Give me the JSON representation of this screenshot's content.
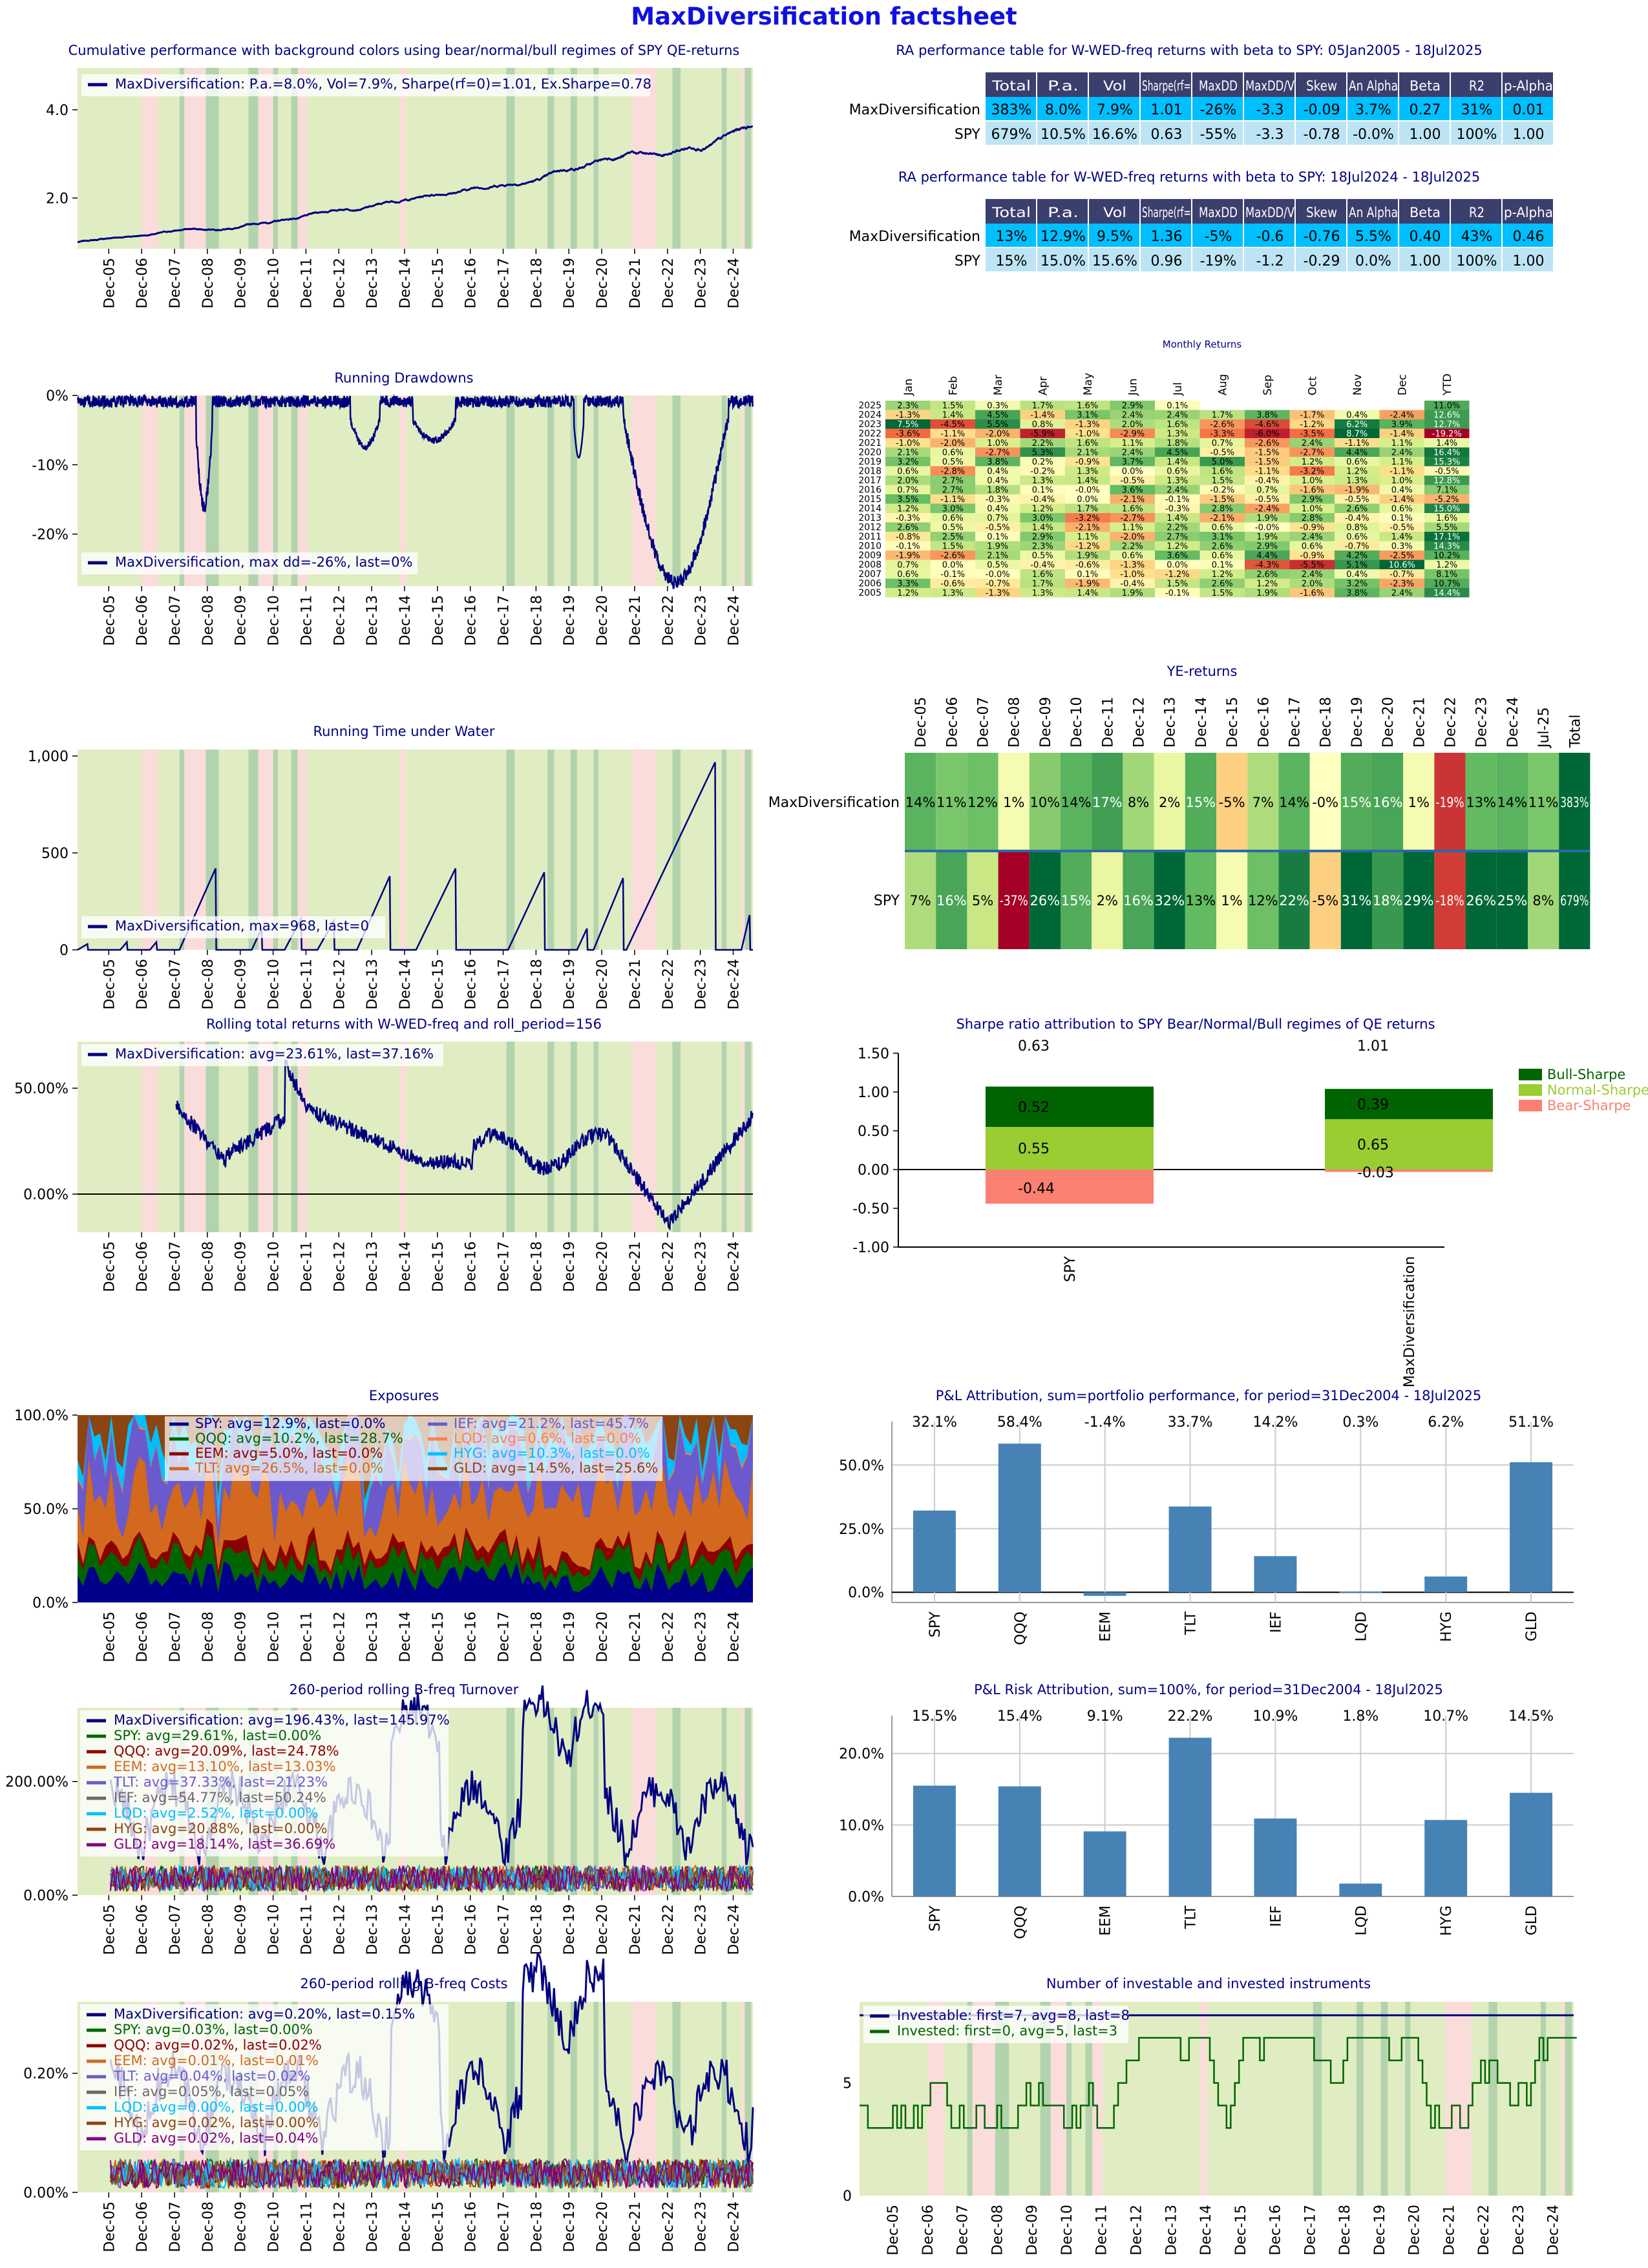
{
  "page_title": "MaxDiversification factsheet",
  "colors": {
    "bull": "#e0edc2",
    "normal": "#b3d3ad",
    "bear": "#fadddb",
    "navy": "#00007f",
    "header": "#3b3f6e",
    "cyan": "#00bfff",
    "lightblue": "#bde4f4",
    "steel": "#4682b4"
  },
  "regime_bands": {
    "note": "years as decimals, used only to paint regime background",
    "normal": [
      [
        2008.1,
        2008.25
      ],
      [
        2008.9,
        2009.3
      ],
      [
        2010.2,
        2010.5
      ],
      [
        2010.95,
        2011.1
      ],
      [
        2011.5,
        2011.7
      ],
      [
        2018.05,
        2018.3
      ],
      [
        2019.3,
        2019.5
      ],
      [
        2020.0,
        2020.2
      ],
      [
        2020.7,
        2020.85
      ],
      [
        2023.1,
        2023.35
      ],
      [
        2024.6,
        2024.75
      ],
      [
        2025.3,
        2025.5
      ]
    ],
    "bear": [
      [
        2006.95,
        2007.45
      ],
      [
        2008.25,
        2008.9
      ],
      [
        2010.5,
        2010.95
      ],
      [
        2011.7,
        2012.0
      ],
      [
        2014.8,
        2015.0
      ],
      [
        2021.85,
        2022.6
      ],
      [
        2025.2,
        2025.3
      ]
    ]
  },
  "x_ticks": [
    "Dec-05",
    "Dec-06",
    "Dec-07",
    "Dec-08",
    "Dec-09",
    "Dec-10",
    "Dec-11",
    "Dec-12",
    "Dec-13",
    "Dec-14",
    "Dec-15",
    "Dec-16",
    "Dec-17",
    "Dec-18",
    "Dec-19",
    "Dec-20",
    "Dec-21",
    "Dec-22",
    "Dec-23",
    "Dec-24"
  ],
  "panels": {
    "cum": {
      "title": "Cumulative performance with background colors using bear/normal/bull regimes of SPY QE-returns",
      "legend": "MaxDiversification: P.a.=8.0%, Vol=7.9%, Sharpe(rf=0)=1.01, Ex.Sharpe=0.78",
      "y_ticks": [
        "2.0",
        "4.0"
      ]
    },
    "dd": {
      "title": "Running Drawdowns",
      "legend": "MaxDiversification, max dd=-26%, last=0%",
      "y_ticks": [
        "0%",
        "-10%",
        "-20%"
      ]
    },
    "tuw": {
      "title": "Running Time under Water",
      "legend": "MaxDiversification, max=968, last=0",
      "y_ticks": [
        "0",
        "500",
        "1,000"
      ]
    },
    "roll": {
      "title": "Rolling total returns with W-WED-freq and roll_period=156",
      "legend": "MaxDiversification: avg=23.61%, last=37.16%",
      "y_ticks": [
        "0.00%",
        "50.00%"
      ]
    },
    "exp": {
      "title": "Exposures",
      "legend": [
        {
          "label": "SPY: avg=12.9%, last=0.0%",
          "color": "#00008b"
        },
        {
          "label": "IEF: avg=21.2%, last=45.7%",
          "color": "#6a5acd"
        },
        {
          "label": "QQQ: avg=10.2%, last=28.7%",
          "color": "#006400"
        },
        {
          "label": "LQD: avg=0.6%, last=0.0%",
          "color": "#ff7f50"
        },
        {
          "label": "EEM: avg=5.0%, last=0.0%",
          "color": "#8b0000"
        },
        {
          "label": "HYG: avg=10.3%, last=0.0%",
          "color": "#00bfff"
        },
        {
          "label": "TLT: avg=26.5%, last=0.0%",
          "color": "#d2691e"
        },
        {
          "label": "GLD: avg=14.5%, last=25.6%",
          "color": "#8b4513"
        }
      ],
      "y_ticks": [
        "0.0%",
        "50.0%",
        "100.0%"
      ]
    },
    "turn": {
      "title": "260-period rolling B-freq Turnover",
      "legend": [
        {
          "label": "MaxDiversification: avg=196.43%, last=145.97%",
          "color": "#00007f"
        },
        {
          "label": "SPY: avg=29.61%, last=0.00%",
          "color": "#006400"
        },
        {
          "label": "QQQ: avg=20.09%, last=24.78%",
          "color": "#8b0000"
        },
        {
          "label": "EEM: avg=13.10%, last=13.03%",
          "color": "#d2691e"
        },
        {
          "label": "TLT: avg=37.33%, last=21.23%",
          "color": "#6a5acd"
        },
        {
          "label": "IEF: avg=54.77%, last=50.24%",
          "color": "#696969"
        },
        {
          "label": "LQD: avg=2.52%, last=0.00%",
          "color": "#00bfff"
        },
        {
          "label": "HYG: avg=20.88%, last=0.00%",
          "color": "#8b4513"
        },
        {
          "label": "GLD: avg=18.14%, last=36.69%",
          "color": "#800080"
        }
      ],
      "y_ticks": [
        "0.00%",
        "200.00%"
      ]
    },
    "cost": {
      "title": "260-period rolling B-freq Costs",
      "legend": [
        {
          "label": "MaxDiversification: avg=0.20%, last=0.15%",
          "color": "#00007f"
        },
        {
          "label": "SPY: avg=0.03%, last=0.00%",
          "color": "#006400"
        },
        {
          "label": "QQQ: avg=0.02%, last=0.02%",
          "color": "#8b0000"
        },
        {
          "label": "EEM: avg=0.01%, last=0.01%",
          "color": "#d2691e"
        },
        {
          "label": "TLT: avg=0.04%, last=0.02%",
          "color": "#6a5acd"
        },
        {
          "label": "IEF: avg=0.05%, last=0.05%",
          "color": "#696969"
        },
        {
          "label": "LQD: avg=0.00%, last=0.00%",
          "color": "#00bfff"
        },
        {
          "label": "HYG: avg=0.02%, last=0.00%",
          "color": "#8b4513"
        },
        {
          "label": "GLD: avg=0.02%, last=0.04%",
          "color": "#800080"
        }
      ],
      "y_ticks": [
        "0.00%",
        "0.20%"
      ]
    },
    "ninst": {
      "title": "Number of investable and invested instruments",
      "legend": [
        {
          "label": "Investable: first=7, avg=8, last=8",
          "color": "#00007f"
        },
        {
          "label": "Invested: first=0, avg=5, last=3",
          "color": "#006400"
        }
      ],
      "y_ticks": [
        "0",
        "5"
      ]
    }
  },
  "ra_tables": [
    {
      "title": "RA performance table  for W-WED-freq returns with beta to SPY: 05Jan2005 - 18Jul2025",
      "headers": [
        "Total",
        "P.a.",
        "Vol",
        "Sharpe(rf=",
        "MaxDD",
        "MaxDD/V",
        "Skew",
        "An Alpha",
        "Beta",
        "R2",
        "p-Alpha"
      ],
      "rows": [
        {
          "name": "MaxDiversification",
          "cells": [
            "383%",
            "8.0%",
            "7.9%",
            "1.01",
            "-26%",
            "-3.3",
            "-0.09",
            "3.7%",
            "0.27",
            "31%",
            "0.01"
          ]
        },
        {
          "name": "SPY",
          "cells": [
            "679%",
            "10.5%",
            "16.6%",
            "0.63",
            "-55%",
            "-3.3",
            "-0.78",
            "-0.0%",
            "1.00",
            "100%",
            "1.00"
          ]
        }
      ]
    },
    {
      "title": "RA performance table  for W-WED-freq returns with beta to SPY: 18Jul2024 - 18Jul2025",
      "headers": [
        "Total",
        "P.a.",
        "Vol",
        "Sharpe(rf=",
        "MaxDD",
        "MaxDD/V",
        "Skew",
        "An Alpha",
        "Beta",
        "R2",
        "p-Alpha"
      ],
      "rows": [
        {
          "name": "MaxDiversification",
          "cells": [
            "13%",
            "12.9%",
            "9.5%",
            "1.36",
            "-5%",
            "-0.6",
            "-0.76",
            "5.5%",
            "0.40",
            "43%",
            "0.46"
          ]
        },
        {
          "name": "SPY",
          "cells": [
            "15%",
            "15.0%",
            "15.6%",
            "0.96",
            "-19%",
            "-1.2",
            "-0.29",
            "0.0%",
            "1.00",
            "100%",
            "1.00"
          ]
        }
      ]
    }
  ],
  "monthly": {
    "title": "Monthly Returns",
    "columns": [
      "Jan",
      "Feb",
      "Mar",
      "Apr",
      "May",
      "Jun",
      "Jul",
      "Aug",
      "Sep",
      "Oct",
      "Nov",
      "Dec",
      "YTD"
    ],
    "rows": [
      {
        "year": "2025",
        "cells": [
          "2.3%",
          "1.5%",
          "0.3%",
          "1.7%",
          "1.6%",
          "2.9%",
          "0.1%",
          "",
          "",
          "",
          "",
          "",
          "11.0%"
        ]
      },
      {
        "year": "2024",
        "cells": [
          "-1.3%",
          "1.4%",
          "4.5%",
          "-1.4%",
          "3.1%",
          "2.4%",
          "2.4%",
          "1.7%",
          "3.8%",
          "-1.7%",
          "0.4%",
          "-2.4%",
          "12.6%"
        ]
      },
      {
        "year": "2023",
        "cells": [
          "7.5%",
          "-4.5%",
          "5.5%",
          "0.8%",
          "-1.3%",
          "2.0%",
          "1.6%",
          "-2.6%",
          "-4.6%",
          "-1.2%",
          "6.2%",
          "3.9%",
          "12.7%"
        ]
      },
      {
        "year": "2022",
        "cells": [
          "-3.6%",
          "-1.1%",
          "-2.0%",
          "-5.9%",
          "-1.0%",
          "-2.9%",
          "1.3%",
          "-3.3%",
          "-6.0%",
          "-3.5%",
          "8.7%",
          "-1.4%",
          "-19.2%"
        ]
      },
      {
        "year": "2021",
        "cells": [
          "-1.0%",
          "-2.0%",
          "1.0%",
          "2.2%",
          "1.6%",
          "1.1%",
          "1.8%",
          "0.7%",
          "-2.6%",
          "2.4%",
          "-1.1%",
          "1.1%",
          "1.4%"
        ]
      },
      {
        "year": "2020",
        "cells": [
          "2.1%",
          "0.6%",
          "-2.7%",
          "5.3%",
          "2.1%",
          "2.4%",
          "4.5%",
          "-0.5%",
          "-1.5%",
          "-2.7%",
          "4.4%",
          "2.4%",
          "16.4%"
        ]
      },
      {
        "year": "2019",
        "cells": [
          "3.2%",
          "0.5%",
          "3.8%",
          "0.2%",
          "-0.9%",
          "3.7%",
          "1.4%",
          "5.0%",
          "-1.5%",
          "1.2%",
          "0.6%",
          "1.1%",
          "15.3%"
        ]
      },
      {
        "year": "2018",
        "cells": [
          "0.6%",
          "-2.8%",
          "0.4%",
          "-0.2%",
          "1.3%",
          "0.0%",
          "0.6%",
          "1.6%",
          "-1.1%",
          "-3.2%",
          "1.2%",
          "-1.1%",
          "-0.5%"
        ]
      },
      {
        "year": "2017",
        "cells": [
          "2.0%",
          "2.7%",
          "0.4%",
          "1.3%",
          "1.4%",
          "-0.5%",
          "1.3%",
          "1.5%",
          "-0.4%",
          "1.0%",
          "1.3%",
          "1.0%",
          "12.8%"
        ]
      },
      {
        "year": "2016",
        "cells": [
          "0.7%",
          "2.7%",
          "1.8%",
          "0.1%",
          "-0.0%",
          "3.6%",
          "2.4%",
          "-0.2%",
          "0.7%",
          "-1.6%",
          "-1.9%",
          "0.4%",
          "7.1%"
        ]
      },
      {
        "year": "2015",
        "cells": [
          "3.5%",
          "-1.1%",
          "-0.3%",
          "-0.4%",
          "0.0%",
          "-2.1%",
          "-0.1%",
          "-1.5%",
          "-0.5%",
          "2.9%",
          "-0.5%",
          "-1.4%",
          "-5.2%"
        ]
      },
      {
        "year": "2014",
        "cells": [
          "1.2%",
          "3.0%",
          "0.4%",
          "1.2%",
          "1.7%",
          "1.6%",
          "-0.3%",
          "2.8%",
          "-2.4%",
          "1.0%",
          "2.6%",
          "0.6%",
          "15.0%"
        ]
      },
      {
        "year": "2013",
        "cells": [
          "-0.3%",
          "0.6%",
          "0.7%",
          "3.0%",
          "-3.2%",
          "-2.7%",
          "1.4%",
          "-2.1%",
          "1.9%",
          "2.8%",
          "-0.4%",
          "0.1%",
          "1.6%"
        ]
      },
      {
        "year": "2012",
        "cells": [
          "2.6%",
          "0.5%",
          "-0.5%",
          "1.4%",
          "-2.1%",
          "1.1%",
          "2.2%",
          "0.6%",
          "-0.0%",
          "-0.9%",
          "0.8%",
          "-0.5%",
          "5.5%"
        ]
      },
      {
        "year": "2011",
        "cells": [
          "-0.8%",
          "2.5%",
          "0.1%",
          "2.9%",
          "1.1%",
          "-2.0%",
          "2.7%",
          "3.1%",
          "1.9%",
          "2.4%",
          "0.6%",
          "1.4%",
          "17.1%"
        ]
      },
      {
        "year": "2010",
        "cells": [
          "-0.1%",
          "1.5%",
          "1.9%",
          "2.3%",
          "-1.2%",
          "2.2%",
          "1.2%",
          "2.6%",
          "2.9%",
          "0.6%",
          "-0.7%",
          "0.3%",
          "14.3%"
        ]
      },
      {
        "year": "2009",
        "cells": [
          "-1.9%",
          "-2.6%",
          "2.1%",
          "0.5%",
          "1.9%",
          "0.6%",
          "3.6%",
          "0.6%",
          "4.4%",
          "-0.9%",
          "4.2%",
          "-2.5%",
          "10.2%"
        ]
      },
      {
        "year": "2008",
        "cells": [
          "0.7%",
          "0.0%",
          "0.5%",
          "-0.4%",
          "-0.6%",
          "-1.3%",
          "0.0%",
          "0.1%",
          "-4.3%",
          "-5.5%",
          "5.1%",
          "10.6%",
          "1.2%"
        ]
      },
      {
        "year": "2007",
        "cells": [
          "0.6%",
          "-0.1%",
          "-0.0%",
          "1.6%",
          "0.1%",
          "-1.0%",
          "-1.2%",
          "1.2%",
          "2.6%",
          "2.4%",
          "0.4%",
          "-0.7%",
          "8.1%"
        ]
      },
      {
        "year": "2006",
        "cells": [
          "3.3%",
          "-0.6%",
          "-0.7%",
          "1.7%",
          "-1.9%",
          "-0.4%",
          "1.5%",
          "2.6%",
          "1.2%",
          "2.0%",
          "3.2%",
          "-2.3%",
          "10.7%"
        ]
      },
      {
        "year": "2005",
        "cells": [
          "1.2%",
          "1.3%",
          "-1.3%",
          "1.3%",
          "1.4%",
          "1.9%",
          "-0.1%",
          "1.5%",
          "1.9%",
          "-1.6%",
          "3.8%",
          "2.4%",
          "14.4%"
        ]
      }
    ]
  },
  "ye": {
    "title": "YE-returns",
    "columns": [
      "Dec-05",
      "Dec-06",
      "Dec-07",
      "Dec-08",
      "Dec-09",
      "Dec-10",
      "Dec-11",
      "Dec-12",
      "Dec-13",
      "Dec-14",
      "Dec-15",
      "Dec-16",
      "Dec-17",
      "Dec-18",
      "Dec-19",
      "Dec-20",
      "Dec-21",
      "Dec-22",
      "Dec-23",
      "Dec-24",
      "Jul-25",
      "Total"
    ],
    "rows": [
      {
        "name": "MaxDiversification",
        "cells": [
          "14%",
          "11%",
          "12%",
          "1%",
          "10%",
          "14%",
          "17%",
          "8%",
          "2%",
          "15%",
          "-5%",
          "7%",
          "14%",
          "-0%",
          "15%",
          "16%",
          "1%",
          "-19%",
          "13%",
          "14%",
          "11%",
          "383%"
        ]
      },
      {
        "name": "SPY",
        "cells": [
          "7%",
          "16%",
          "5%",
          "-37%",
          "26%",
          "15%",
          "2%",
          "16%",
          "32%",
          "13%",
          "1%",
          "12%",
          "22%",
          "-5%",
          "31%",
          "18%",
          "29%",
          "-18%",
          "26%",
          "25%",
          "8%",
          "679%"
        ]
      }
    ]
  },
  "sharpe": {
    "title": "Sharpe ratio attribution to SPY Bear/Normal/Bull regimes of QE returns",
    "categories": [
      "SPY",
      "MaxDiversification"
    ],
    "totals": [
      "0.63",
      "1.01"
    ],
    "series": [
      {
        "name": "Bull-Sharpe",
        "color": "#006400",
        "values": [
          0.52,
          0.39
        ]
      },
      {
        "name": "Normal-Sharpe",
        "color": "#9acd32",
        "values": [
          0.55,
          0.65
        ]
      },
      {
        "name": "Bear-Sharpe",
        "color": "#fa8072",
        "values": [
          -0.44,
          -0.03
        ]
      }
    ],
    "y_ticks": [
      "-1.00",
      "-0.50",
      "0.00",
      "0.50",
      "1.00",
      "1.50"
    ],
    "ylim": [
      -1.0,
      1.5
    ]
  },
  "pnl": {
    "title": "P&L Attribution, sum=portfolio performance, for period=31Dec2004 - 18Jul2025",
    "categories": [
      "SPY",
      "QQQ",
      "EEM",
      "TLT",
      "IEF",
      "LQD",
      "HYG",
      "GLD"
    ],
    "values": [
      32.1,
      58.4,
      -1.4,
      33.7,
      14.2,
      0.3,
      6.2,
      51.1
    ],
    "labels": [
      "32.1%",
      "58.4%",
      "-1.4%",
      "33.7%",
      "14.2%",
      "0.3%",
      "6.2%",
      "51.1%"
    ],
    "y_ticks": [
      "0.0%",
      "25.0%",
      "50.0%"
    ],
    "ylim": [
      -4,
      62
    ]
  },
  "risk": {
    "title": "P&L Risk Attribution, sum=100%, for period=31Dec2004 - 18Jul2025",
    "categories": [
      "SPY",
      "QQQ",
      "EEM",
      "TLT",
      "IEF",
      "LQD",
      "HYG",
      "GLD"
    ],
    "values": [
      15.5,
      15.4,
      9.1,
      22.2,
      10.9,
      1.8,
      10.7,
      14.5
    ],
    "labels": [
      "15.5%",
      "15.4%",
      "9.1%",
      "22.2%",
      "10.9%",
      "1.8%",
      "10.7%",
      "14.5%"
    ],
    "y_ticks": [
      "0.0%",
      "10.0%",
      "20.0%"
    ],
    "ylim": [
      0,
      23.5
    ]
  }
}
